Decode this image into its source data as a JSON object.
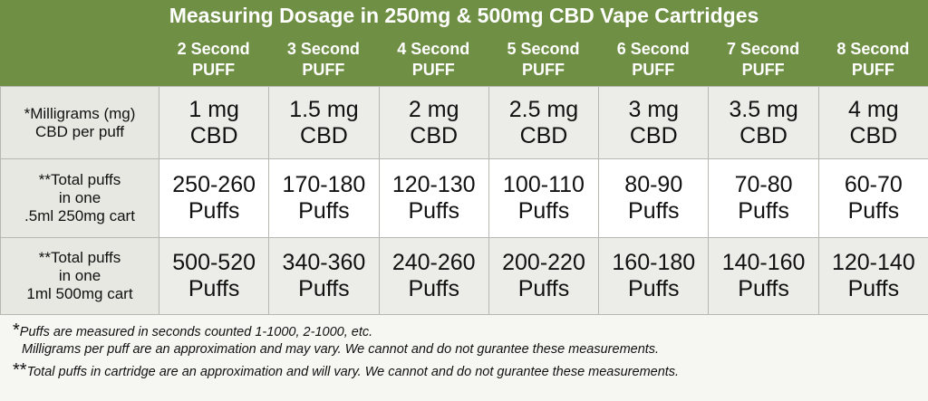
{
  "header": {
    "title": "Measuring Dosage in 250mg & 500mg CBD Vape Cartridges",
    "columns": [
      [
        "2 Second",
        "PUFF"
      ],
      [
        "3 Second",
        "PUFF"
      ],
      [
        "4 Second",
        "PUFF"
      ],
      [
        "5 Second",
        "PUFF"
      ],
      [
        "6 Second",
        "PUFF"
      ],
      [
        "7 Second",
        "PUFF"
      ],
      [
        "8 Second",
        "PUFF"
      ]
    ]
  },
  "table": {
    "rows": [
      {
        "label": [
          "*Milligrams (mg)",
          "CBD per puff"
        ],
        "cells": [
          [
            "1 mg",
            "CBD"
          ],
          [
            "1.5 mg",
            "CBD"
          ],
          [
            "2 mg",
            "CBD"
          ],
          [
            "2.5 mg",
            "CBD"
          ],
          [
            "3 mg",
            "CBD"
          ],
          [
            "3.5 mg",
            "CBD"
          ],
          [
            "4 mg",
            "CBD"
          ]
        ]
      },
      {
        "label": [
          "**Total puffs",
          "in one",
          ".5ml 250mg cart"
        ],
        "cells": [
          [
            "250-260",
            "Puffs"
          ],
          [
            "170-180",
            "Puffs"
          ],
          [
            "120-130",
            "Puffs"
          ],
          [
            "100-110",
            "Puffs"
          ],
          [
            "80-90",
            "Puffs"
          ],
          [
            "70-80",
            "Puffs"
          ],
          [
            "60-70",
            "Puffs"
          ]
        ]
      },
      {
        "label": [
          "**Total puffs",
          "in one",
          "1ml 500mg cart"
        ],
        "cells": [
          [
            "500-520",
            "Puffs"
          ],
          [
            "340-360",
            "Puffs"
          ],
          [
            "240-260",
            "Puffs"
          ],
          [
            "200-220",
            "Puffs"
          ],
          [
            "160-180",
            "Puffs"
          ],
          [
            "140-160",
            "Puffs"
          ],
          [
            "120-140",
            "Puffs"
          ]
        ]
      }
    ]
  },
  "footnotes": [
    {
      "mark": "*",
      "lines": [
        "Puffs are measured in seconds counted 1-1000, 2-1000, etc.",
        "Milligrams per puff are an approximation and may vary. We cannot and do not gurantee these measurements."
      ]
    },
    {
      "mark": "**",
      "lines": [
        "Total puffs in cartridge are an approximation and will vary. We cannot and do not gurantee these measurements."
      ]
    }
  ]
}
